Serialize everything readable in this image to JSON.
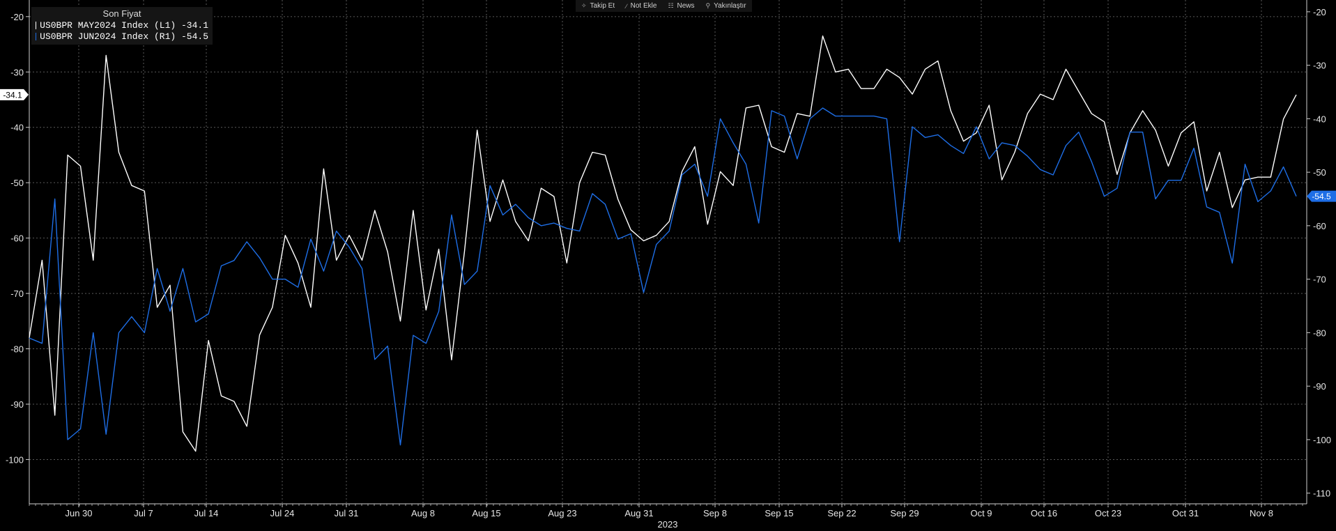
{
  "toolbar": {
    "items": [
      {
        "label": "Takip Et",
        "icon": "plus-icon"
      },
      {
        "label": "Not Ekle",
        "icon": "pencil-icon"
      },
      {
        "label": "News",
        "icon": "news-icon"
      },
      {
        "label": "Yakınlaştır",
        "icon": "search-icon"
      }
    ]
  },
  "legend": {
    "header": "Son Fiyat",
    "items": [
      {
        "label": "US0BPR MAY2024 Index  (L1) -34.1",
        "color": "#ffffff"
      },
      {
        "label": "US0BPR JUN2024 Index  (R1) -54.5",
        "color": "#1e6ee6"
      }
    ]
  },
  "chart_data": {
    "type": "line",
    "xlabel": "2023",
    "x_ticks": [
      "Jun 30",
      "Jul 7",
      "Jul 14",
      "Jul 24",
      "Jul 31",
      "Aug 8",
      "Aug 15",
      "Aug 23",
      "Aug 31",
      "Sep 8",
      "Sep 15",
      "Sep 22",
      "Sep 29",
      "Oct 9",
      "Oct 16",
      "Oct 23",
      "Oct 31",
      "Nov 8"
    ],
    "y_left": {
      "ticks": [
        -20,
        -30,
        -40,
        -50,
        -60,
        -70,
        -80,
        -90,
        -100
      ],
      "range": [
        -108,
        -17
      ]
    },
    "y_right": {
      "ticks": [
        -20,
        -30,
        -40,
        -50,
        -60,
        -70,
        -80,
        -90,
        -100,
        -110
      ],
      "range": [
        -112,
        -17.8
      ]
    },
    "last_value_tags": {
      "left": "-34.1",
      "right": "-54.5"
    },
    "series": [
      {
        "name": "US0BPR MAY2024 Index  (L1) -34.1",
        "axis": "left",
        "color": "#ffffff",
        "values": [
          -78,
          -64,
          -92,
          -45,
          -47,
          -64,
          -27,
          -44.5,
          -50.5,
          -51.5,
          -72.5,
          -68.5,
          -95,
          -98.5,
          -78.5,
          -88.5,
          -89.5,
          -94,
          -77.5,
          -72.5,
          -59.5,
          -64.5,
          -72.5,
          -47.5,
          -64,
          -59.5,
          -64,
          -55,
          -62.5,
          -75,
          -55,
          -73,
          -62,
          -82,
          -62.5,
          -40.5,
          -57,
          -49.5,
          -57,
          -60.5,
          -51,
          -52.5,
          -64.5,
          -50,
          -44.5,
          -45,
          -53,
          -58.5,
          -60.5,
          -59.5,
          -57,
          -48,
          -43.5,
          -57.5,
          -48,
          -50.5,
          -36.5,
          -36,
          -43.5,
          -44.5,
          -37.5,
          -38,
          -23.5,
          -30,
          -29.5,
          -33,
          -33,
          -29.5,
          -31,
          -34,
          -29.5,
          -28,
          -37,
          -42.5,
          -41,
          -36,
          -49.5,
          -44.5,
          -37.5,
          -34,
          -35,
          -29.5,
          -33.5,
          -37.5,
          -39,
          -48.5,
          -41,
          -37,
          -40.5,
          -47,
          -41,
          -39,
          -51.5,
          -44.5,
          -54.5,
          -49.5,
          -49,
          -49,
          -38.5,
          -34.1
        ]
      },
      {
        "name": "US0BPR JUN2024 Index  (R1) -54.5",
        "axis": "right",
        "color": "#1e6ee6",
        "values": [
          -81,
          -82,
          -55,
          -100,
          -98,
          -80,
          -99,
          -80,
          -77,
          -80,
          -68,
          -76,
          -68,
          -78,
          -76.5,
          -67.5,
          -66.5,
          -63,
          -66,
          -70,
          -70,
          -71.5,
          -62.5,
          -68.5,
          -61,
          -64,
          -68,
          -85,
          -82.5,
          -101,
          -80.5,
          -82,
          -76,
          -58,
          -71,
          -68.5,
          -52.5,
          -58,
          -56,
          -58.5,
          -60,
          -59.5,
          -60.5,
          -61,
          -54,
          -56,
          -62.5,
          -61.5,
          -72.5,
          -63.5,
          -61,
          -50.5,
          -48.5,
          -54.5,
          -40,
          -44.5,
          -48.5,
          -59.5,
          -38.5,
          -39.5,
          -47.5,
          -40,
          -38,
          -39.5,
          -39.5,
          -39.5,
          -39.5,
          -40,
          -63,
          -41.5,
          -43.5,
          -43,
          -45,
          -46.5,
          -41.5,
          -47.5,
          -44.5,
          -45,
          -47,
          -49.5,
          -50.5,
          -45,
          -42.5,
          -48,
          -54.5,
          -53,
          -42.5,
          -42.5,
          -55,
          -51.5,
          -51.5,
          -45.5,
          -56.5,
          -57.5,
          -67,
          -48.5,
          -55.5,
          -53.5,
          -49,
          -54.5
        ]
      }
    ]
  }
}
